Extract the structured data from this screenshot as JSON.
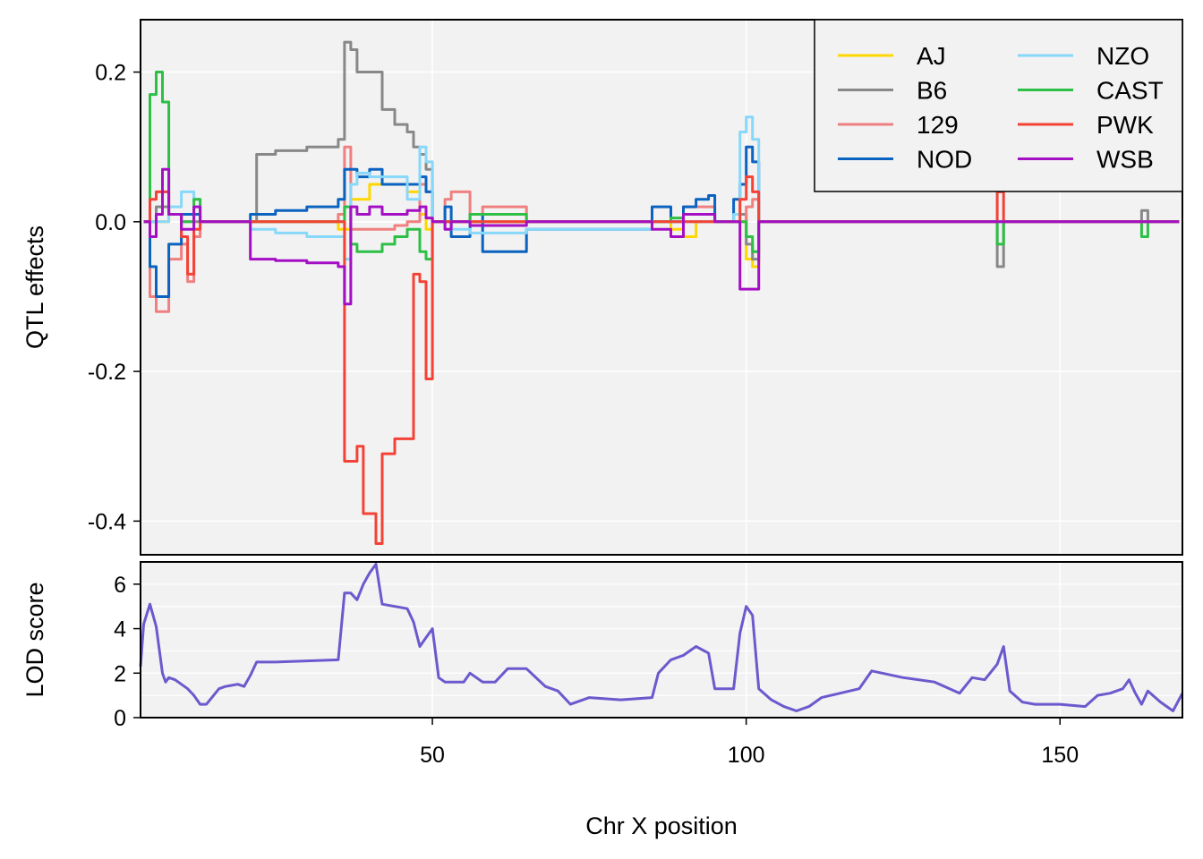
{
  "chart_data": [
    {
      "type": "line",
      "panel": "effects",
      "title": "",
      "xlabel": "",
      "ylabel": "QTL effects",
      "xlim": [
        3.5,
        169.5
      ],
      "ylim": [
        -0.445,
        0.27
      ],
      "yticks": [
        -0.4,
        -0.2,
        0.0,
        0.2
      ],
      "ytick_labels": [
        "-0.4",
        "-0.2",
        "0.0",
        "0.2"
      ],
      "xgrid": [
        50,
        100,
        150
      ],
      "grid": true,
      "background": "#f2f2f2",
      "legend": {
        "position": "top-right",
        "columns": 2
      },
      "series": [
        {
          "name": "AJ",
          "color": "#ffd700",
          "x": [
            4,
            8,
            12,
            13,
            21,
            35,
            37,
            40,
            42,
            46,
            48,
            49,
            50,
            56,
            60,
            65,
            69,
            85,
            88,
            90,
            92,
            95,
            99,
            100,
            101,
            102,
            169
          ],
          "y": [
            0,
            0.01,
            0,
            0,
            0,
            -0.01,
            0.03,
            0.05,
            0.05,
            0.04,
            0.01,
            -0.01,
            0,
            0,
            0,
            0,
            0,
            0,
            -0.01,
            -0.02,
            0,
            0,
            0,
            -0.05,
            -0.06,
            0,
            0
          ]
        },
        {
          "name": "B6",
          "color": "#888888",
          "x": [
            4,
            6,
            8,
            10,
            12,
            13,
            21,
            22,
            25,
            30,
            35,
            36,
            37,
            38,
            40,
            42,
            44,
            46,
            47,
            48,
            49,
            50,
            55,
            60,
            65,
            69,
            85,
            90,
            95,
            98,
            100,
            101,
            102,
            139,
            140,
            141,
            162,
            163,
            164,
            169
          ],
          "y": [
            0,
            0.02,
            0.01,
            0,
            0,
            0,
            0,
            0.09,
            0.095,
            0.1,
            0.11,
            0.24,
            0.23,
            0.2,
            0.2,
            0.15,
            0.13,
            0.12,
            0.1,
            0.09,
            0.07,
            0,
            0,
            0,
            0,
            0,
            0,
            0,
            0,
            0.01,
            -0.03,
            -0.05,
            0,
            0,
            -0.06,
            0,
            0,
            0.015,
            0,
            0
          ]
        },
        {
          "name": "129",
          "color": "#f08080",
          "x": [
            4,
            5,
            6,
            8,
            10,
            11,
            12,
            13,
            21,
            30,
            35,
            36,
            37,
            38,
            40,
            42,
            44,
            46,
            48,
            49,
            50,
            52,
            53,
            55,
            56,
            58,
            60,
            65,
            69,
            85,
            90,
            95,
            98,
            100,
            101,
            102,
            169
          ],
          "y": [
            0,
            -0.1,
            -0.12,
            -0.05,
            -0.03,
            -0.08,
            -0.02,
            0,
            0,
            0,
            0.01,
            0.1,
            -0.01,
            -0.01,
            -0.01,
            -0.01,
            -0.005,
            0,
            0.05,
            0.04,
            0,
            0.03,
            0.04,
            0.04,
            0.01,
            0.02,
            0.02,
            0,
            0,
            0,
            0.02,
            0,
            0,
            0.02,
            0.03,
            0,
            0
          ]
        },
        {
          "name": "NOD",
          "color": "#0b63c0",
          "x": [
            4,
            5,
            6,
            8,
            10,
            12,
            13,
            21,
            25,
            30,
            35,
            36,
            37,
            38,
            40,
            42,
            44,
            46,
            48,
            49,
            50,
            52,
            53,
            55,
            56,
            58,
            60,
            65,
            69,
            85,
            86,
            88,
            90,
            92,
            94,
            95,
            98,
            99,
            100,
            101,
            102,
            169
          ],
          "y": [
            0,
            -0.06,
            -0.1,
            -0.03,
            0.01,
            0.01,
            0,
            0.01,
            0.015,
            0.02,
            0.03,
            0.07,
            0.07,
            0.06,
            0.07,
            0.05,
            0.05,
            0.05,
            0.06,
            0.04,
            0,
            0.02,
            -0.02,
            -0.02,
            0.01,
            -0.04,
            -0.04,
            -0.01,
            -0.01,
            0.02,
            0.02,
            0,
            0.02,
            0.03,
            0.035,
            0,
            0.03,
            0.05,
            0.1,
            0.08,
            0,
            0
          ]
        },
        {
          "name": "NZO",
          "color": "#87d8fa",
          "x": [
            4,
            8,
            10,
            12,
            13,
            21,
            25,
            30,
            35,
            36,
            37,
            38,
            40,
            42,
            44,
            46,
            48,
            49,
            50,
            52,
            53,
            55,
            56,
            58,
            60,
            65,
            69,
            85,
            90,
            95,
            98,
            99,
            100,
            101,
            102,
            169
          ],
          "y": [
            0,
            0.02,
            0.04,
            0.03,
            0,
            -0.01,
            -0.015,
            -0.02,
            -0.02,
            -0.05,
            0.05,
            0.065,
            0.06,
            0.06,
            0.06,
            0.03,
            0.1,
            0.08,
            0,
            -0.01,
            -0.01,
            -0.01,
            -0.015,
            -0.015,
            -0.015,
            -0.01,
            -0.01,
            0,
            0,
            0,
            0.01,
            0.12,
            0.14,
            0.11,
            0,
            0
          ]
        },
        {
          "name": "CAST",
          "color": "#2ebf46",
          "x": [
            4,
            5,
            6,
            7,
            8,
            10,
            12,
            13,
            21,
            30,
            35,
            36,
            37,
            38,
            40,
            42,
            44,
            46,
            48,
            49,
            50,
            56,
            60,
            65,
            69,
            85,
            88,
            90,
            92,
            95,
            98,
            100,
            101,
            102,
            139,
            140,
            141,
            162,
            163,
            164,
            169
          ],
          "y": [
            0,
            0.17,
            0.2,
            0.16,
            0.01,
            0,
            0.03,
            0,
            0,
            0,
            0,
            0.02,
            -0.03,
            -0.04,
            -0.04,
            -0.03,
            -0.02,
            -0.01,
            -0.04,
            -0.05,
            0,
            0.01,
            0.01,
            0,
            0,
            0,
            0.005,
            0.01,
            0.01,
            0,
            0,
            -0.02,
            -0.04,
            0,
            0,
            -0.03,
            0,
            0,
            -0.02,
            0,
            0
          ]
        },
        {
          "name": "PWK",
          "color": "#f44336",
          "x": [
            4,
            5,
            6,
            8,
            10,
            11,
            12,
            13,
            21,
            30,
            35,
            36,
            37,
            38,
            39,
            40,
            41,
            42,
            44,
            46,
            47,
            48,
            49,
            50,
            56,
            60,
            65,
            69,
            85,
            90,
            95,
            98,
            99,
            100,
            101,
            102,
            139,
            140,
            141,
            169
          ],
          "y": [
            0,
            0.03,
            0.04,
            0.01,
            -0.02,
            -0.07,
            -0.01,
            0,
            0,
            0,
            0,
            -0.32,
            -0.32,
            -0.3,
            -0.39,
            -0.39,
            -0.43,
            -0.31,
            -0.29,
            -0.29,
            -0.07,
            -0.08,
            -0.21,
            0,
            0,
            0,
            0,
            0,
            0,
            0,
            0,
            0,
            0.03,
            0.06,
            0.04,
            0,
            0,
            0.04,
            0,
            0
          ]
        },
        {
          "name": "WSB",
          "color": "#a40fc4",
          "x": [
            4,
            5,
            6,
            7,
            8,
            10,
            12,
            13,
            21,
            25,
            30,
            35,
            36,
            37,
            38,
            40,
            42,
            44,
            46,
            48,
            49,
            50,
            52,
            53,
            55,
            56,
            58,
            60,
            65,
            69,
            85,
            88,
            90,
            95,
            98,
            99,
            100,
            101,
            102,
            169
          ],
          "y": [
            0,
            -0.02,
            0.01,
            0.07,
            0.01,
            -0.01,
            0.02,
            0,
            -0.05,
            -0.052,
            -0.055,
            -0.06,
            -0.11,
            0.02,
            0.01,
            0.02,
            0.01,
            0.01,
            0.015,
            0.02,
            0.005,
            0,
            -0.01,
            0,
            0,
            -0.005,
            -0.005,
            -0.005,
            0,
            0,
            -0.01,
            -0.02,
            0.01,
            0,
            0,
            -0.09,
            -0.09,
            -0.09,
            0,
            0
          ]
        }
      ]
    },
    {
      "type": "line",
      "panel": "lod",
      "title": "",
      "xlabel": "Chr X position",
      "ylabel": "LOD score",
      "xlim": [
        3.5,
        169.5
      ],
      "ylim": [
        0,
        7
      ],
      "yticks": [
        0,
        2,
        4,
        6
      ],
      "ytick_labels": [
        "0",
        "2",
        "4",
        "6"
      ],
      "xticks": [
        50,
        100,
        150
      ],
      "xtick_labels": [
        "50",
        "100",
        "150"
      ],
      "grid": true,
      "background": "#f2f2f2",
      "series": [
        {
          "name": "",
          "color": "#6a5acd",
          "x": [
            3.5,
            4,
            5,
            6,
            7,
            7.5,
            8,
            9,
            10,
            11,
            12,
            13,
            14,
            16,
            17,
            19,
            20,
            21,
            22,
            25,
            30,
            35,
            36,
            37,
            38,
            39,
            40,
            41,
            42,
            44,
            46,
            47,
            48,
            49,
            50,
            51,
            52,
            55,
            56,
            58,
            60,
            62,
            65,
            68,
            70,
            72,
            75,
            80,
            85,
            86,
            88,
            90,
            92,
            94,
            95,
            96,
            98,
            99,
            100,
            101,
            102,
            104,
            106,
            108,
            110,
            112,
            115,
            118,
            120,
            125,
            130,
            134,
            136,
            138,
            140,
            141,
            142,
            144,
            146,
            150,
            154,
            156,
            158,
            160,
            161,
            162,
            163,
            164,
            166,
            168,
            169.5
          ],
          "y": [
            2.3,
            4.2,
            5.1,
            4.1,
            2.0,
            1.6,
            1.8,
            1.7,
            1.5,
            1.3,
            1.0,
            0.6,
            0.6,
            1.3,
            1.4,
            1.5,
            1.4,
            1.9,
            2.5,
            2.5,
            2.55,
            2.6,
            5.6,
            5.6,
            5.3,
            6.0,
            6.5,
            6.9,
            5.1,
            5.0,
            4.9,
            4.3,
            3.2,
            3.6,
            4.0,
            1.8,
            1.6,
            1.6,
            2.0,
            1.6,
            1.6,
            2.2,
            2.2,
            1.4,
            1.2,
            0.6,
            0.9,
            0.8,
            0.9,
            2.0,
            2.6,
            2.8,
            3.2,
            2.9,
            1.3,
            1.3,
            1.3,
            3.8,
            5.0,
            4.6,
            1.3,
            0.8,
            0.5,
            0.3,
            0.5,
            0.9,
            1.1,
            1.3,
            2.1,
            1.8,
            1.6,
            1.1,
            1.8,
            1.7,
            2.4,
            3.2,
            1.2,
            0.7,
            0.6,
            0.6,
            0.5,
            1.0,
            1.1,
            1.3,
            1.7,
            1.1,
            0.6,
            1.2,
            0.7,
            0.3,
            1.1
          ]
        }
      ]
    }
  ]
}
